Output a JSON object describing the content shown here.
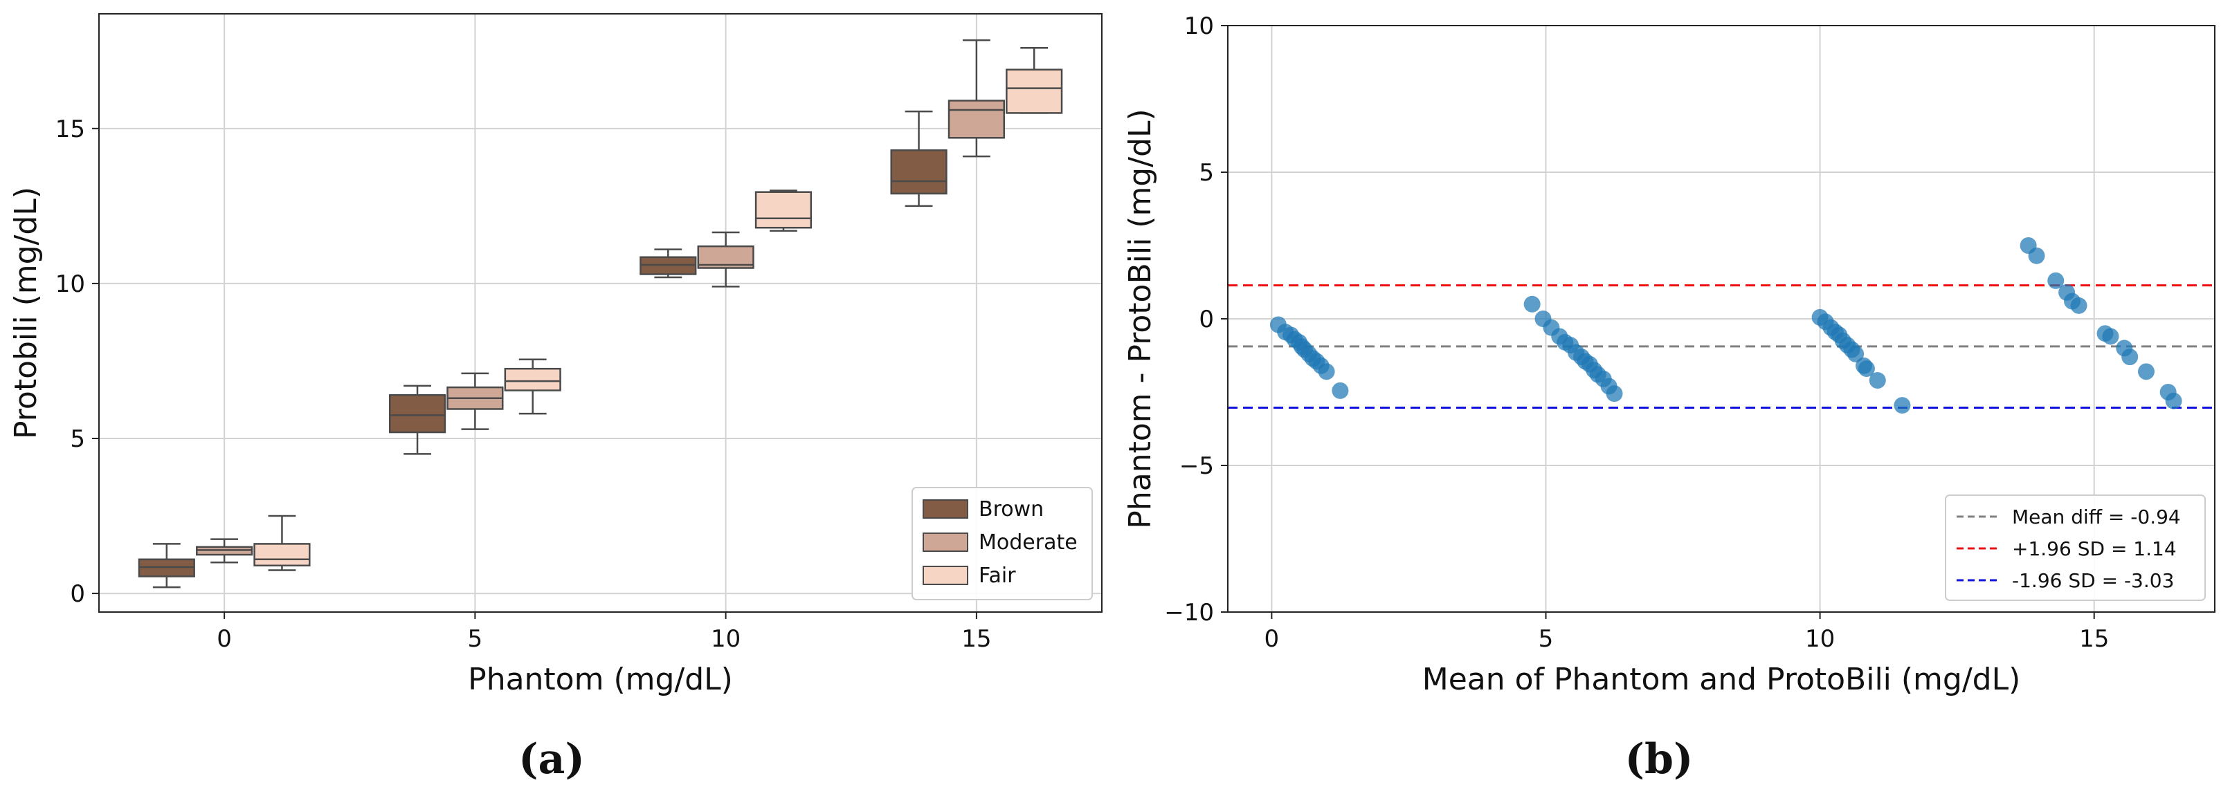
{
  "figure": {
    "panel_labels": [
      "(a)",
      "(b)"
    ]
  },
  "chart_data": [
    {
      "type": "box",
      "title": "",
      "xlabel": "Phantom (mg/dL)",
      "ylabel": "Protobili (mg/dL)",
      "xlim": [
        -2.5,
        17.5
      ],
      "ylim": [
        -0.6,
        18.7
      ],
      "grid": true,
      "categories": [
        "0",
        "5",
        "10",
        "15"
      ],
      "xticks": [
        0,
        5,
        10,
        15
      ],
      "yticks": [
        0,
        5,
        10,
        15
      ],
      "legend_position": "bottom-right",
      "series": [
        {
          "name": "Brown",
          "color": "#835c45",
          "offset": -1.15,
          "width": 1.1,
          "boxes": [
            {
              "x": 0,
              "whislo": 0.2,
              "q1": 0.55,
              "med": 0.85,
              "q3": 1.1,
              "whishi": 1.6
            },
            {
              "x": 5,
              "whislo": 4.5,
              "q1": 5.2,
              "med": 5.75,
              "q3": 6.4,
              "whishi": 6.7
            },
            {
              "x": 10,
              "whislo": 10.2,
              "q1": 10.3,
              "med": 10.6,
              "q3": 10.85,
              "whishi": 11.1
            },
            {
              "x": 15,
              "whislo": 12.5,
              "q1": 12.9,
              "med": 13.3,
              "q3": 14.3,
              "whishi": 15.55
            }
          ]
        },
        {
          "name": "Moderate",
          "color": "#cfa796",
          "offset": 0,
          "width": 1.1,
          "boxes": [
            {
              "x": 0,
              "whislo": 1.0,
              "q1": 1.25,
              "med": 1.4,
              "q3": 1.5,
              "whishi": 1.75
            },
            {
              "x": 5,
              "whislo": 5.3,
              "q1": 5.95,
              "med": 6.3,
              "q3": 6.65,
              "whishi": 7.1
            },
            {
              "x": 10,
              "whislo": 9.9,
              "q1": 10.5,
              "med": 10.6,
              "q3": 11.2,
              "whishi": 11.65
            },
            {
              "x": 15,
              "whislo": 14.1,
              "q1": 14.7,
              "med": 15.6,
              "q3": 15.9,
              "whishi": 17.85
            }
          ]
        },
        {
          "name": "Fair",
          "color": "#f6d5c4",
          "offset": 1.15,
          "width": 1.1,
          "boxes": [
            {
              "x": 0,
              "whislo": 0.75,
              "q1": 0.9,
              "med": 1.1,
              "q3": 1.6,
              "whishi": 2.5
            },
            {
              "x": 5,
              "whislo": 5.8,
              "q1": 6.55,
              "med": 6.85,
              "q3": 7.25,
              "whishi": 7.55
            },
            {
              "x": 10,
              "whislo": 11.7,
              "q1": 11.8,
              "med": 12.1,
              "q3": 12.95,
              "whishi": 13.0
            },
            {
              "x": 15,
              "whislo": 15.5,
              "q1": 15.5,
              "med": 16.3,
              "q3": 16.9,
              "whishi": 17.6
            }
          ]
        }
      ]
    },
    {
      "type": "scatter",
      "title": "",
      "xlabel": "Mean of Phantom and ProtoBili (mg/dL)",
      "ylabel": "Phantom - ProtoBili (mg/dL)",
      "xlim": [
        -0.8,
        17.2
      ],
      "ylim": [
        -10,
        10
      ],
      "grid": true,
      "xticks": [
        0,
        5,
        10,
        15
      ],
      "yticks": [
        -10,
        -5,
        0,
        5,
        10
      ],
      "ytick_labels": [
        "−10",
        "−5",
        "0",
        "5",
        "10"
      ],
      "point_color": "#1f77b4",
      "points": {
        "x": [
          0.12,
          0.25,
          0.35,
          0.42,
          0.5,
          0.55,
          0.6,
          0.68,
          0.75,
          0.82,
          0.9,
          1.0,
          1.25,
          4.75,
          4.95,
          5.1,
          5.25,
          5.35,
          5.45,
          5.55,
          5.65,
          5.72,
          5.8,
          5.88,
          5.95,
          6.05,
          6.15,
          6.25,
          10.0,
          10.1,
          10.2,
          10.28,
          10.35,
          10.42,
          10.5,
          10.58,
          10.65,
          10.8,
          10.85,
          11.05,
          11.5,
          13.8,
          13.95,
          14.3,
          14.5,
          14.6,
          14.72,
          15.2,
          15.3,
          15.55,
          15.65,
          15.95,
          16.35,
          16.45
        ],
        "y": [
          -0.2,
          -0.45,
          -0.55,
          -0.7,
          -0.8,
          -0.95,
          -1.05,
          -1.2,
          -1.35,
          -1.45,
          -1.6,
          -1.8,
          -2.45,
          0.5,
          0.0,
          -0.3,
          -0.6,
          -0.8,
          -0.9,
          -1.15,
          -1.3,
          -1.45,
          -1.55,
          -1.75,
          -1.9,
          -2.05,
          -2.3,
          -2.55,
          0.05,
          -0.1,
          -0.3,
          -0.45,
          -0.55,
          -0.75,
          -0.9,
          -1.05,
          -1.2,
          -1.6,
          -1.7,
          -2.1,
          -2.95,
          2.5,
          2.15,
          1.3,
          0.9,
          0.6,
          0.45,
          -0.5,
          -0.6,
          -1.0,
          -1.3,
          -1.8,
          -2.5,
          -2.8
        ]
      },
      "reference_lines": [
        {
          "label": "Mean diff = -0.94",
          "value": -0.94,
          "color": "#808080"
        },
        {
          "label": "+1.96 SD = 1.14",
          "value": 1.14,
          "color": "#ee1111"
        },
        {
          "label": "-1.96 SD = -3.03",
          "value": -3.03,
          "color": "#1111dd"
        }
      ],
      "legend_position": "bottom-right"
    }
  ]
}
